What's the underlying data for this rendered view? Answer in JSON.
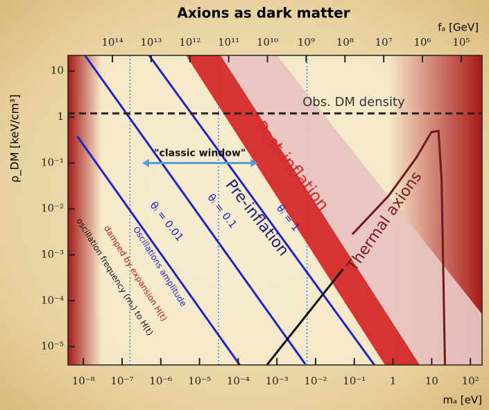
{
  "chart_data": {
    "type": "line",
    "title": "Axions as dark matter",
    "x_label": "mₐ [eV]",
    "y_label": "ρ_DM [keV/cm³]",
    "x2_label": "fₐ [GeV]",
    "xscale": "log",
    "yscale": "log",
    "x2scale": "log",
    "xlim": [
      4e-09,
      200
    ],
    "ylim": [
      4e-06,
      22
    ],
    "x2lim": [
      1400000000000000.0,
      29000.0
    ],
    "xticks": [
      {
        "value": 1e-08,
        "label": "10⁻⁸"
      },
      {
        "value": 1e-07,
        "label": "10⁻⁷"
      },
      {
        "value": 1e-06,
        "label": "10⁻⁶"
      },
      {
        "value": 1e-05,
        "label": "10⁻⁵"
      },
      {
        "value": 0.0001,
        "label": "10⁻⁴"
      },
      {
        "value": 0.001,
        "label": "10⁻³"
      },
      {
        "value": 0.01,
        "label": "10⁻²"
      },
      {
        "value": 0.1,
        "label": "10⁻¹"
      },
      1,
      10,
      {
        "value": 100,
        "label": "10²"
      }
    ],
    "yticks": [
      {
        "value": 1e-05,
        "label": "10⁻⁵"
      },
      {
        "value": 0.0001,
        "label": "10⁻⁴"
      },
      {
        "value": 0.001,
        "label": "10⁻³"
      },
      {
        "value": 0.01,
        "label": "10⁻²"
      },
      {
        "value": 0.1,
        "label": "10⁻¹"
      },
      1,
      10
    ],
    "x2ticks": [
      {
        "value": 100000000000000.0,
        "label": "10¹⁴"
      },
      {
        "value": 10000000000000.0,
        "label": "10¹³"
      },
      {
        "value": 1000000000000.0,
        "label": "10¹²"
      },
      {
        "value": 100000000000.0,
        "label": "10¹¹"
      },
      {
        "value": 10000000000.0,
        "label": "10¹⁰"
      },
      {
        "value": 1000000000.0,
        "label": "10⁹"
      },
      {
        "value": 100000000.0,
        "label": "10⁸"
      },
      {
        "value": 10000000.0,
        "label": "10⁷"
      },
      {
        "value": 1000000.0,
        "label": "10⁶"
      },
      {
        "value": 100000.0,
        "label": "10⁵"
      }
    ],
    "series": [
      {
        "shape": "band",
        "color": "#e8c4c0",
        "x": [
          3.5e-05,
          0.001,
          200,
          200,
          4.9
        ],
        "values": [
          22,
          22,
          5.1e-05,
          4e-06,
          4e-06
        ]
      },
      {
        "shape": "band",
        "color": "#d42a2a",
        "x": [
          4.5e-06,
          3.5e-05,
          4.9,
          0.62
        ],
        "values": [
          22,
          22,
          4e-06,
          4e-06
        ]
      },
      {
        "shape": "line",
        "color": "#1f22c8",
        "x": [
          7e-09,
          0.00011
        ],
        "values": [
          0.38,
          4e-06
        ]
      },
      {
        "shape": "line",
        "color": "#1f22c8",
        "x": [
          1.1e-08,
          0.0054
        ],
        "values": [
          22,
          4.2e-06
        ]
      },
      {
        "shape": "line",
        "color": "#1f22c8",
        "x": [
          5e-07,
          0.33
        ],
        "values": [
          22,
          4e-06
        ]
      },
      {
        "shape": "line",
        "color": "#111111",
        "x": [
          0.00055,
          0.051
        ],
        "values": [
          4e-06,
          0.00049
        ]
      },
      {
        "shape": "line",
        "color": "#6e1a1a",
        "x": [
          0.089,
          0.76,
          4,
          9.8,
          15,
          18,
          20,
          22
        ],
        "values": [
          0.0028,
          0.019,
          0.13,
          0.47,
          0.5,
          0.044,
          0.00035,
          4e-06
        ]
      }
    ],
    "reference_line": {
      "value": 1.2,
      "label": "Obs. DM density",
      "color": "#2a2020"
    },
    "vlines": [
      1.6e-07,
      3.1e-05,
      0.006
    ],
    "window": {
      "x": [
        3.3e-07,
        0.00032
      ],
      "y": 0.1,
      "label": "\"classic window\"",
      "color": "#5a9ad0"
    },
    "annotations": [
      "Post-inflation",
      "Pre-inflation",
      "Thermal axions",
      "θᵢ = 0.01",
      "θᵢ = 0.1",
      "θᵢ = 1",
      "Oscillations amplitude",
      "damped by expansion H(t)",
      "oscillation frequency (mₐ) to H(t)"
    ]
  }
}
